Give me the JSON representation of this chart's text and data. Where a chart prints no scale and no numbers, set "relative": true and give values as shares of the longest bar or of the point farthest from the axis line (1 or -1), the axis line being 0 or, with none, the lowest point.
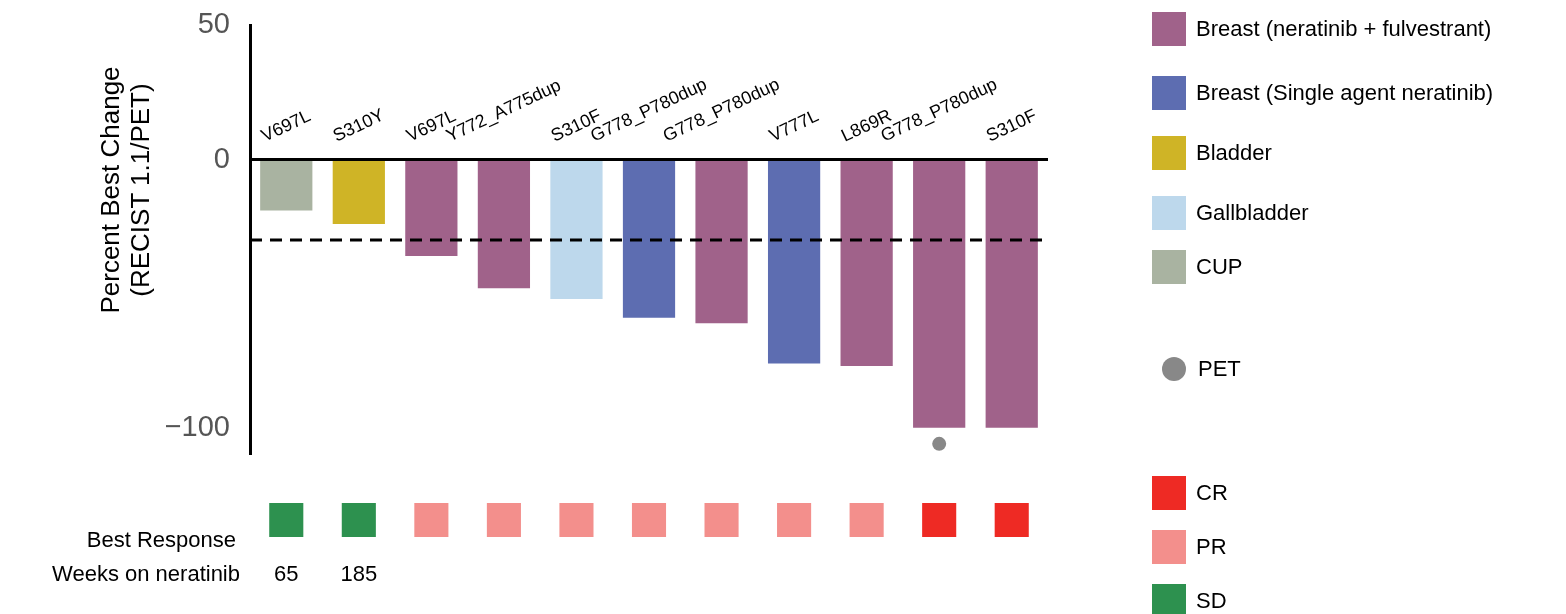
{
  "chart_data": [
    {
      "type": "bar",
      "ylabel": "Percent Best Change (RECIST 1.1/PET)",
      "categories": [
        "V697L",
        "S310Y",
        "V697L",
        "Y772_A775dup",
        "S310F",
        "G778_P780dup",
        "G778_P780dup",
        "V777L",
        "L869R",
        "G778_P780dup",
        "S310F"
      ],
      "stacked": true,
      "series": [
        {
          "name": "Breast (neratinib + fulvestrant)",
          "color": "#a0628a",
          "values": [
            null,
            null,
            -36,
            -48,
            null,
            null,
            -61,
            null,
            -77,
            -100,
            -100
          ]
        },
        {
          "name": "Breast (Single agent neratinib)",
          "color": "#5d6db1",
          "values": [
            null,
            null,
            null,
            null,
            null,
            -59,
            null,
            -76,
            null,
            null,
            null
          ]
        },
        {
          "name": "Bladder",
          "color": "#cfb426",
          "values": [
            null,
            -24,
            null,
            null,
            null,
            null,
            null,
            null,
            null,
            null,
            null
          ]
        },
        {
          "name": "Gallbladder",
          "color": "#bdd8ec",
          "values": [
            null,
            null,
            null,
            null,
            -52,
            null,
            null,
            null,
            null,
            null,
            null
          ]
        },
        {
          "name": "CUP",
          "color": "#a9b3a1",
          "values": [
            -19,
            null,
            null,
            null,
            null,
            null,
            null,
            null,
            null,
            null,
            null
          ]
        },
        {
          "name": "PET",
          "type": "scatter",
          "marker": "circle",
          "color": "#888888",
          "values": [
            null,
            null,
            null,
            null,
            null,
            null,
            null,
            null,
            null,
            -106,
            null
          ]
        }
      ],
      "ylim": [
        -110,
        50
      ],
      "yticks": [
        50,
        0,
        {
          "value": -100,
          "label": "−100"
        }
      ],
      "grid": false,
      "legend": "right",
      "ref_lines": [
        {
          "axis": "y",
          "value": -30,
          "line_style": "dashed",
          "color": "#000000"
        }
      ]
    },
    {
      "type": "bar",
      "relative": true,
      "stacked": true,
      "ylabel": "Best Response",
      "categories": [
        null,
        null,
        null,
        null,
        null,
        null,
        null,
        null,
        null,
        null,
        null
      ],
      "series": [
        {
          "name": "CR",
          "color": "#ee2a24",
          "values": [
            null,
            null,
            null,
            null,
            null,
            null,
            null,
            null,
            null,
            1,
            1
          ]
        },
        {
          "name": "PR",
          "color": "#f38f8c",
          "values": [
            null,
            null,
            1,
            1,
            1,
            1,
            1,
            1,
            1,
            null,
            null
          ]
        },
        {
          "name": "SD",
          "color": "#2d914f",
          "values": [
            1,
            1,
            null,
            null,
            null,
            null,
            null,
            null,
            null,
            null,
            null
          ]
        }
      ],
      "legend": "right",
      "annotations": [
        "Weeks on neratinib",
        "65",
        "185"
      ]
    }
  ]
}
